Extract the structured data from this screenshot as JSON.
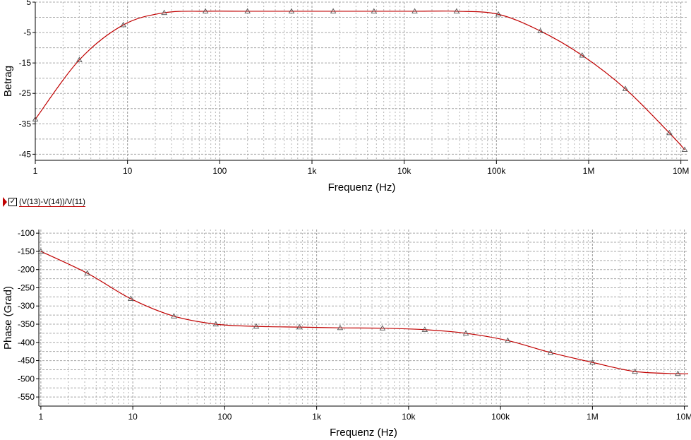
{
  "legend": {
    "label": "(V(13)-V(14))/V(11)",
    "checked": "✓",
    "color": "#c00000"
  },
  "chart_data": [
    {
      "type": "line",
      "title": "",
      "xlabel": "Frequenz (Hz)",
      "ylabel": "Betrag",
      "xscale": "log",
      "xlim": [
        1,
        12000000
      ],
      "ylim": [
        -47,
        5
      ],
      "xtick_labels": [
        "1",
        "10",
        "100",
        "1k",
        "10k",
        "100k",
        "1M",
        "10M"
      ],
      "xtick_values": [
        1,
        10,
        100,
        1000,
        10000,
        100000,
        1000000,
        10000000
      ],
      "ytick_values": [
        5,
        -5,
        -15,
        -25,
        -35,
        -45
      ],
      "grid": true,
      "series": [
        {
          "name": "(V(13)-V(14))/V(11)",
          "color": "#c00000",
          "x": [
            1,
            3,
            9,
            25,
            70,
            200,
            600,
            1700,
            4700,
            13000,
            37000,
            105000,
            300000,
            850000,
            2500000,
            7500000,
            11000000
          ],
          "y": [
            -33.5,
            -14,
            -2.5,
            1.5,
            2,
            2,
            2,
            2,
            2,
            2,
            2,
            1,
            -4.5,
            -12.5,
            -23.5,
            -38,
            -43.5
          ]
        }
      ]
    },
    {
      "type": "line",
      "title": "",
      "xlabel": "Frequenz (Hz)",
      "ylabel": "Phase (Grad)",
      "xscale": "log",
      "xlim": [
        0.95,
        11000000
      ],
      "ylim": [
        -575,
        -90
      ],
      "xtick_labels": [
        "1",
        "10",
        "100",
        "1k",
        "10k",
        "100k",
        "1M",
        "10M"
      ],
      "xtick_values": [
        1,
        10,
        100,
        1000,
        10000,
        100000,
        1000000,
        10000000
      ],
      "ytick_values": [
        -100,
        -150,
        -200,
        -250,
        -300,
        -350,
        -400,
        -450,
        -500,
        -550
      ],
      "grid": true,
      "series": [
        {
          "name": "(V(13)-V(14))/V(11)",
          "color": "#c00000",
          "x": [
            1,
            3.2,
            9.5,
            28,
            80,
            220,
            650,
            1800,
            5200,
            15000,
            42000,
            120000,
            350000,
            1000000,
            2900000,
            8500000,
            11000000
          ],
          "y": [
            -150,
            -210,
            -280,
            -328,
            -350,
            -356,
            -358,
            -360,
            -361,
            -365,
            -375,
            -395,
            -428,
            -455,
            -480,
            -486,
            -486
          ]
        }
      ]
    }
  ]
}
